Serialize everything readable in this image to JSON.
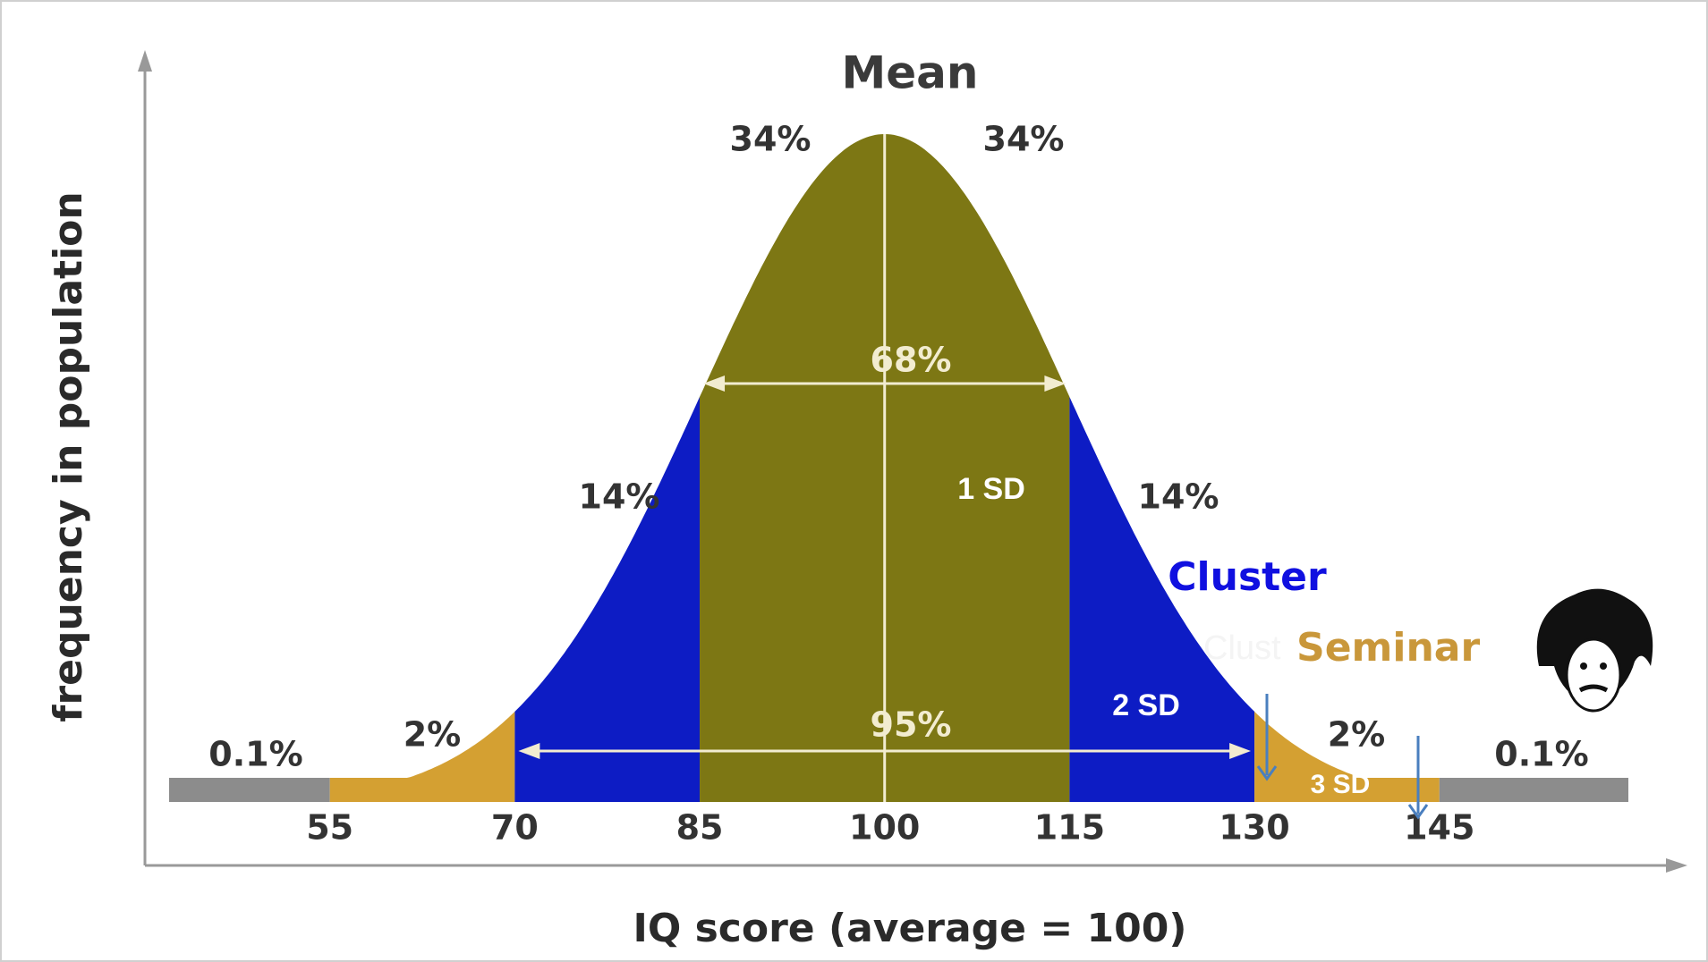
{
  "chart_data": {
    "type": "normal",
    "title": "Mean",
    "x_label": "IQ score (average = 100)",
    "y_label": "frequency in population",
    "xlim": [
      40,
      162
    ],
    "xticks": [
      55,
      70,
      85,
      100,
      115,
      130,
      145
    ],
    "regions": {
      "values": [
        0.1,
        2,
        14,
        34,
        34,
        14,
        2,
        0.1
      ],
      "value_labels": [
        "0.1%",
        "2%",
        "14%",
        "34%",
        "34%",
        "14%",
        "2%",
        "0.1%"
      ],
      "colors": [
        "#8c8c8c",
        "#d4a032",
        "#0d1cc4",
        "#7d7714",
        "#7d7714",
        "#0d1cc4",
        "#d4a032",
        "#8c8c8c"
      ]
    },
    "annotations": [
      "68%",
      "95%",
      "1 SD",
      "2 SD",
      "3 SD",
      "Cluster",
      "Clust",
      "Seminar"
    ]
  }
}
